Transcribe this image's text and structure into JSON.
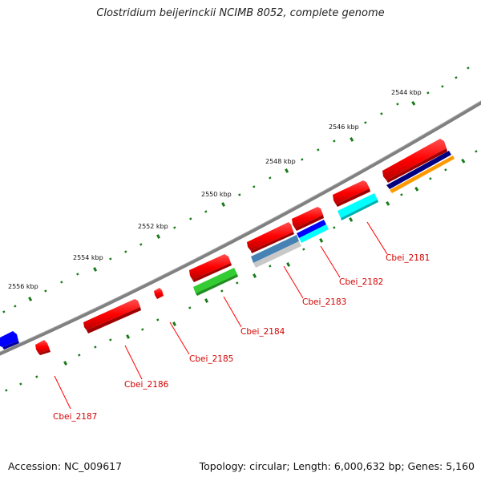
{
  "title": "Clostridium beijerinckii NCIMB 8052, complete genome",
  "footer": {
    "accession": "Accession: NC_009617",
    "summary": "Topology: circular; Length: 6,000,632 bp; Genes: 5,160"
  },
  "scale": {
    "labels": [
      "2544 kbp",
      "2546 kbp",
      "2548 kbp",
      "2550 kbp",
      "2552 kbp",
      "2554 kbp",
      "2556 kbp"
    ]
  },
  "genes": {
    "labels": [
      "Cbei_2181",
      "Cbei_2182",
      "Cbei_2183",
      "Cbei_2184",
      "Cbei_2185",
      "Cbei_2186",
      "Cbei_2187"
    ]
  },
  "colors": {
    "backbone": "#808080",
    "gene": "#ff0000",
    "label": "#d40000",
    "tick": "#1a7a1a",
    "cds_blue": "#0000ff",
    "cds_navy": "#000080",
    "cds_orange": "#ff9900",
    "cds_cyan": "#00ffff",
    "cds_steelblue": "#4682b4",
    "cds_gray": "#c0c0c0",
    "cds_green": "#33cc33"
  }
}
